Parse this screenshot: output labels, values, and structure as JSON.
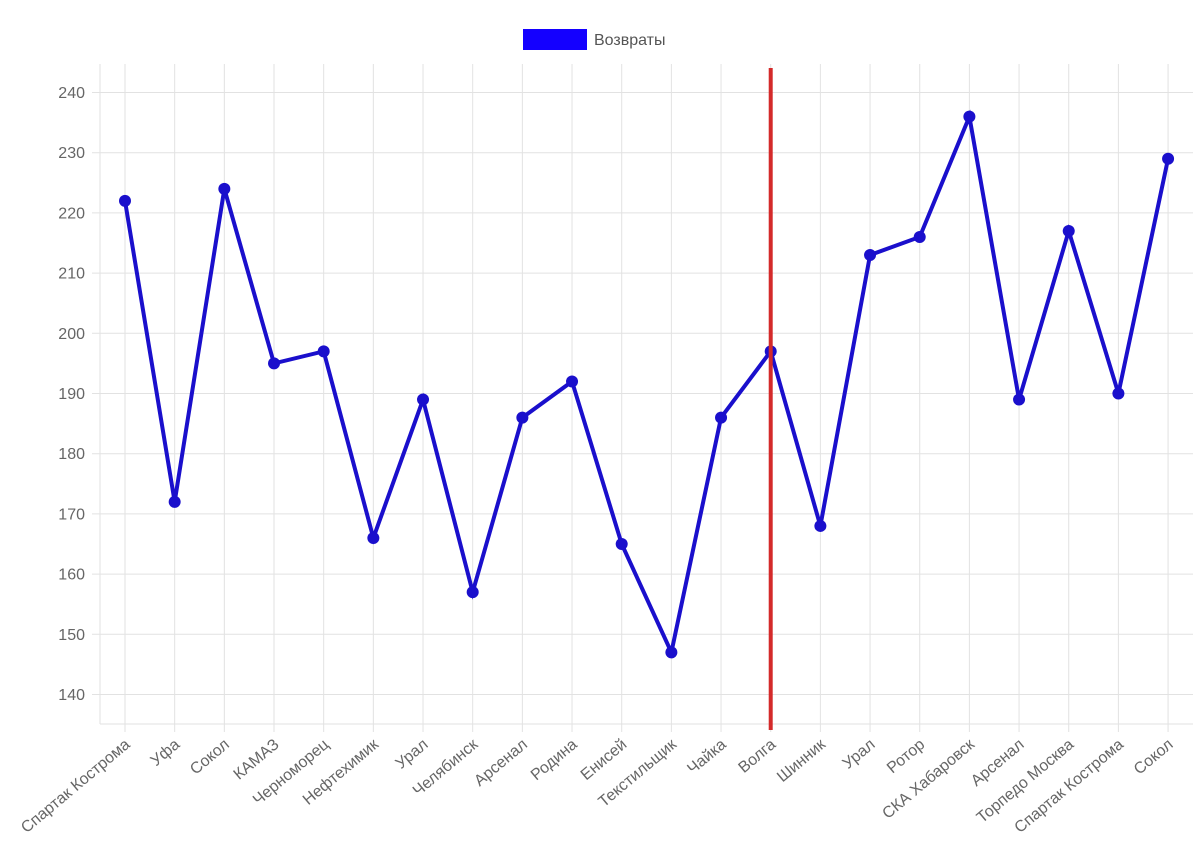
{
  "chart_data": {
    "type": "line",
    "categories": [
      "Спартак Кострома",
      "Уфа",
      "Сокол",
      "КАМАЗ",
      "Черноморец",
      "Нефтехимик",
      "Урал",
      "Челябинск",
      "Арсенал",
      "Родина",
      "Енисей",
      "Текстильщик",
      "Чайка",
      "Волга",
      "Шинник",
      "Урал",
      "Ротор",
      "СКА Хабаровск",
      "Арсенал",
      "Торпедо Москва",
      "Спартак Кострома",
      "Сокол"
    ],
    "series": [
      {
        "name": "Возвраты",
        "values": [
          222,
          172,
          224,
          195,
          197,
          166,
          189,
          157,
          186,
          192,
          165,
          147,
          186,
          197,
          168,
          213,
          216,
          236,
          189,
          217,
          190,
          229
        ],
        "color": "#1a0fcc",
        "legend_color": "#1400ff"
      }
    ],
    "yticks": [
      140,
      150,
      160,
      170,
      180,
      190,
      200,
      210,
      220,
      230,
      240
    ],
    "ylim": [
      135,
      245
    ],
    "marker_line": {
      "category_index": 13,
      "color": "#d42a2a"
    },
    "grid": true,
    "legend_position": "top-center",
    "title": "",
    "xlabel": "",
    "ylabel": ""
  }
}
